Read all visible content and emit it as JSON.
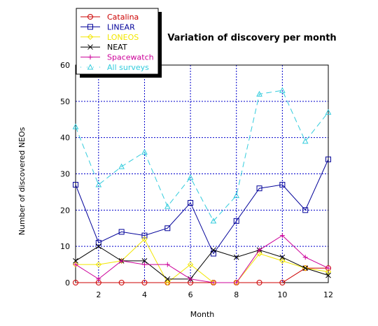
{
  "chart_data": {
    "type": "line",
    "title": "Variation of discovery per month",
    "xlabel": "Month",
    "ylabel": "Number of discovered NEOs",
    "xlim": [
      1,
      12
    ],
    "ylim": [
      0,
      60
    ],
    "x_ticks": [
      2,
      4,
      6,
      8,
      10,
      12
    ],
    "y_ticks": [
      0,
      10,
      20,
      30,
      40,
      50,
      60
    ],
    "grid": true,
    "legend_position": "top-left",
    "x": [
      1,
      2,
      3,
      4,
      5,
      6,
      7,
      8,
      9,
      10,
      11,
      12
    ],
    "series": [
      {
        "name": "Catalina",
        "color": "#cc0000",
        "marker": "circle",
        "line": "solid",
        "values": [
          0,
          0,
          0,
          0,
          0,
          0,
          0,
          0,
          0,
          0,
          4,
          4
        ]
      },
      {
        "name": "LINEAR",
        "color": "#000099",
        "marker": "square",
        "line": "solid",
        "values": [
          27,
          11,
          14,
          13,
          15,
          22,
          8,
          17,
          26,
          27,
          20,
          34
        ]
      },
      {
        "name": "LONEOS",
        "color": "#f2e600",
        "marker": "diamond",
        "line": "solid",
        "values": [
          5,
          5,
          6,
          12,
          0,
          5,
          0,
          0,
          8,
          6,
          4,
          3
        ]
      },
      {
        "name": "NEAT",
        "color": "#000000",
        "marker": "x",
        "line": "solid",
        "values": [
          6,
          10,
          6,
          6,
          1,
          1,
          9,
          7,
          9,
          7,
          4,
          2
        ]
      },
      {
        "name": "Spacewatch",
        "color": "#cc0099",
        "marker": "plus",
        "line": "solid",
        "values": [
          5,
          1,
          6,
          5,
          5,
          1,
          0,
          0,
          9,
          13,
          7,
          4
        ]
      },
      {
        "name": "All surveys",
        "color": "#33ccdd",
        "marker": "triangle",
        "line": "dashed",
        "values": [
          43,
          27,
          32,
          36,
          21,
          29,
          17,
          24,
          52,
          53,
          39,
          47
        ]
      }
    ]
  }
}
